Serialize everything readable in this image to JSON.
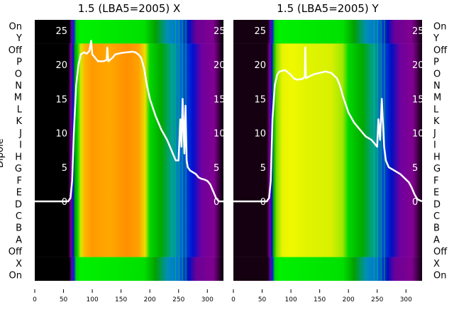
{
  "chart_data": [
    {
      "type": "heatmap",
      "title": "1.5 (LBA5=2005) X",
      "ylabel": "Dipole",
      "row_labels": [
        "On",
        "Y",
        "Off",
        "P",
        "O",
        "N",
        "M",
        "L",
        "K",
        "J",
        "I",
        "H",
        "G",
        "F",
        "E",
        "D",
        "C",
        "B",
        "A",
        "Off",
        "X",
        "On"
      ],
      "x_ticks": [
        0,
        50,
        100,
        150,
        200,
        250,
        300
      ],
      "xlim": [
        0,
        328
      ],
      "inner_y_ticks": [
        0,
        5,
        10,
        15,
        20,
        25
      ],
      "ylim": [
        -6.5,
        26.5
      ],
      "main_color_stops": [
        [
          0,
          "#000000"
        ],
        [
          58,
          "#000000"
        ],
        [
          63,
          "#7a0090"
        ],
        [
          67,
          "#0010d0"
        ],
        [
          70,
          "#00a000"
        ],
        [
          74,
          "#00d000"
        ],
        [
          80,
          "#d8e800"
        ],
        [
          88,
          "#ffb000"
        ],
        [
          100,
          "#ff9a00"
        ],
        [
          130,
          "#ffa800"
        ],
        [
          160,
          "#ff9000"
        ],
        [
          180,
          "#ffa000"
        ],
        [
          192,
          "#e8e000"
        ],
        [
          200,
          "#00d800"
        ],
        [
          220,
          "#00a800"
        ],
        [
          240,
          "#00a0a0"
        ],
        [
          255,
          "#0060e0"
        ],
        [
          275,
          "#0010d0"
        ],
        [
          290,
          "#7000a0"
        ],
        [
          312,
          "#800090"
        ],
        [
          328,
          "#000000"
        ]
      ],
      "band_color_stops": [
        [
          0,
          "#000000"
        ],
        [
          60,
          "#000000"
        ],
        [
          64,
          "#6000a0"
        ],
        [
          68,
          "#0020e0"
        ],
        [
          72,
          "#00d800"
        ],
        [
          80,
          "#00f000"
        ],
        [
          190,
          "#00e000"
        ],
        [
          210,
          "#00a000"
        ],
        [
          230,
          "#0090b0"
        ],
        [
          250,
          "#0070e0"
        ],
        [
          268,
          "#0010c0"
        ],
        [
          280,
          "#6a0098"
        ],
        [
          310,
          "#800090"
        ],
        [
          328,
          "#000000"
        ]
      ],
      "series": [
        {
          "name": "X",
          "color": "#ffffff",
          "x": [
            0,
            58,
            62,
            65,
            68,
            72,
            76,
            80,
            86,
            90,
            95,
            98,
            100,
            105,
            110,
            120,
            125,
            126,
            128,
            135,
            140,
            150,
            160,
            170,
            175,
            180,
            185,
            190,
            195,
            200,
            210,
            220,
            230,
            235,
            240,
            245,
            250,
            253,
            255,
            257,
            260,
            262,
            264,
            266,
            270,
            280,
            285,
            290,
            295,
            300,
            305,
            310,
            315,
            320,
            328
          ],
          "y": [
            0,
            0,
            0.5,
            3,
            10,
            17,
            20,
            21.5,
            21.8,
            21.6,
            22,
            23.5,
            21.5,
            21,
            20.5,
            20.5,
            20.7,
            22.5,
            20.5,
            21,
            21.5,
            21.7,
            21.8,
            21.9,
            21.8,
            21.5,
            21,
            19.5,
            17,
            15,
            12.5,
            10.5,
            9,
            8,
            7,
            6,
            6,
            12,
            8,
            15,
            7,
            14,
            6,
            5,
            4.5,
            4,
            3.5,
            3.3,
            3.2,
            3,
            2.5,
            1.5,
            0.5,
            0,
            0
          ]
        }
      ]
    },
    {
      "type": "heatmap",
      "title": "1.5 (LBA5=2005) Y",
      "row_labels": [
        "On",
        "Y",
        "Off",
        "P",
        "O",
        "N",
        "M",
        "L",
        "K",
        "J",
        "I",
        "H",
        "G",
        "F",
        "E",
        "D",
        "C",
        "B",
        "A",
        "Off",
        "X",
        "On"
      ],
      "x_ticks": [
        0,
        50,
        100,
        150,
        200,
        250,
        300
      ],
      "xlim": [
        0,
        328
      ],
      "inner_y_ticks": [
        0,
        5,
        10,
        15,
        20,
        25
      ],
      "ylim": [
        -6.5,
        26.5
      ],
      "main_color_stops": [
        [
          0,
          "#140010"
        ],
        [
          58,
          "#140010"
        ],
        [
          63,
          "#7a0090"
        ],
        [
          67,
          "#0010d0"
        ],
        [
          70,
          "#00b000"
        ],
        [
          75,
          "#80e000"
        ],
        [
          85,
          "#e8f400"
        ],
        [
          100,
          "#f0f800"
        ],
        [
          130,
          "#e0f400"
        ],
        [
          170,
          "#d8f000"
        ],
        [
          190,
          "#a0e800"
        ],
        [
          200,
          "#00d800"
        ],
        [
          225,
          "#00a800"
        ],
        [
          245,
          "#00a0a0"
        ],
        [
          262,
          "#0040e0"
        ],
        [
          275,
          "#0010c0"
        ],
        [
          290,
          "#7000a0"
        ],
        [
          312,
          "#800090"
        ],
        [
          328,
          "#100010"
        ]
      ],
      "band_color_stops": [
        [
          0,
          "#140010"
        ],
        [
          60,
          "#140010"
        ],
        [
          64,
          "#6000a0"
        ],
        [
          68,
          "#0020e0"
        ],
        [
          72,
          "#00d800"
        ],
        [
          80,
          "#00f000"
        ],
        [
          190,
          "#00e000"
        ],
        [
          210,
          "#00a000"
        ],
        [
          230,
          "#0090b0"
        ],
        [
          250,
          "#0070e0"
        ],
        [
          268,
          "#0010c0"
        ],
        [
          280,
          "#6a0098"
        ],
        [
          310,
          "#800090"
        ],
        [
          328,
          "#100010"
        ]
      ],
      "series": [
        {
          "name": "Y",
          "color": "#ffffff",
          "x": [
            0,
            58,
            62,
            65,
            68,
            72,
            76,
            80,
            90,
            100,
            105,
            110,
            120,
            124,
            125,
            126,
            130,
            140,
            150,
            160,
            170,
            180,
            185,
            190,
            200,
            210,
            220,
            230,
            240,
            245,
            250,
            252,
            255,
            258,
            262,
            265,
            270,
            280,
            290,
            300,
            305,
            310,
            315,
            320,
            328
          ],
          "y": [
            0,
            0,
            0.5,
            3,
            12,
            17,
            18.5,
            19,
            19.2,
            18.5,
            18,
            17.8,
            17.9,
            18.2,
            22.5,
            18,
            18.2,
            18.6,
            18.8,
            19,
            18.8,
            18,
            17,
            15.5,
            13,
            11.5,
            10.5,
            9.5,
            9,
            8.5,
            8,
            12,
            9,
            15,
            8,
            6,
            5,
            4.5,
            4,
            3.2,
            2.8,
            2,
            1,
            0.3,
            0
          ]
        }
      ]
    }
  ]
}
